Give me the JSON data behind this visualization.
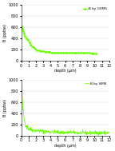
{
  "title1": "B by GDMS",
  "title2": "B by SIMS",
  "ylabel": "B (ppbw)",
  "xlabel": "depth (μm)",
  "ylim1": [
    0,
    1000
  ],
  "ylim2": [
    0,
    1000
  ],
  "xlim": [
    0,
    12
  ],
  "xticks": [
    0,
    1,
    2,
    3,
    4,
    5,
    6,
    7,
    8,
    9,
    10,
    11,
    12
  ],
  "yticks": [
    0,
    200,
    400,
    600,
    800,
    1000
  ],
  "line_color": "#66ff00",
  "background_color": "#ffffff",
  "gdms_x": [
    0.05,
    0.15,
    0.25,
    0.35,
    0.5,
    0.7,
    0.9,
    1.1,
    1.3,
    1.5,
    1.7,
    1.9,
    2.1,
    2.4,
    2.7,
    3.0,
    3.3,
    3.6,
    3.9,
    4.2,
    4.5,
    4.8,
    5.1,
    5.4,
    5.7,
    6.0,
    6.3,
    6.6,
    6.9,
    7.2,
    7.5,
    7.8,
    8.1,
    8.4,
    8.7,
    9.0,
    9.3,
    9.6,
    9.9,
    10.2
  ],
  "gdms_y": [
    620,
    580,
    530,
    490,
    450,
    400,
    370,
    330,
    290,
    260,
    240,
    210,
    195,
    185,
    175,
    170,
    162,
    158,
    155,
    152,
    150,
    148,
    147,
    146,
    145,
    144,
    143,
    143,
    142,
    142,
    141,
    141,
    140,
    140,
    140,
    139,
    139,
    138,
    137,
    130
  ],
  "sims_noise_seed": 42,
  "sims_n_points": 300,
  "sims_x_start": 0.05,
  "sims_x_end": 12.0
}
